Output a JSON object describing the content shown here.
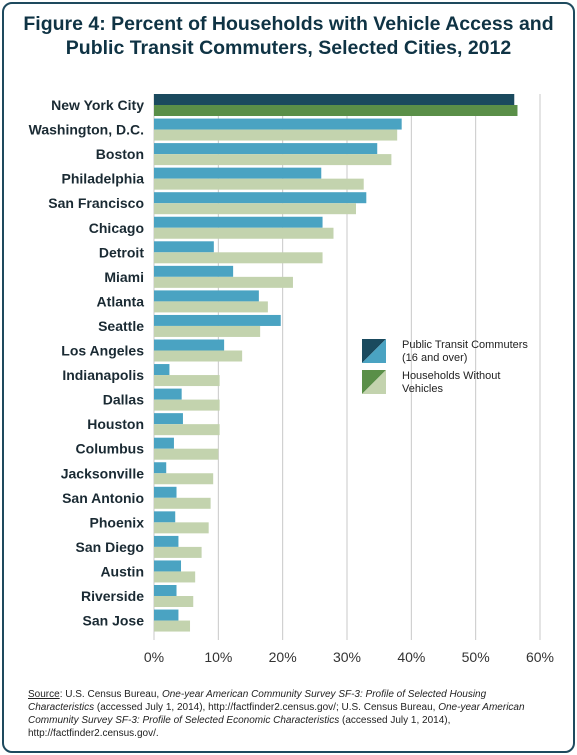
{
  "title_line1": "Figure 4: Percent of Households with Vehicle Access and",
  "title_line2": "Public Transit Commuters, Selected Cities, 2012",
  "colors": {
    "transit": "#4aa3c2",
    "households": "#c3d3ae",
    "transit_highlight": "#1a4a5e",
    "households_highlight": "#5a8f48",
    "grid": "#c8c8c8",
    "label": "#1a2a33"
  },
  "chart_data": {
    "type": "bar",
    "orientation": "horizontal",
    "categories": [
      "New York City",
      "Washington, D.C.",
      "Boston",
      "Philadelphia",
      "San Francisco",
      "Chicago",
      "Detroit",
      "Miami",
      "Atlanta",
      "Seattle",
      "Los Angeles",
      "Indianapolis",
      "Dallas",
      "Houston",
      "Columbus",
      "Jacksonville",
      "San Antonio",
      "Phoenix",
      "San Diego",
      "Austin",
      "Riverside",
      "San Jose"
    ],
    "series": [
      {
        "name": "Public Transit Commuters (16 and over)",
        "values": [
          56.0,
          38.5,
          34.7,
          26.0,
          33.0,
          26.2,
          9.3,
          12.3,
          16.3,
          19.7,
          10.9,
          2.4,
          4.3,
          4.5,
          3.1,
          1.9,
          3.5,
          3.3,
          3.8,
          4.2,
          3.5,
          3.8
        ]
      },
      {
        "name": "Households Without Vehicles",
        "values": [
          56.5,
          37.8,
          36.9,
          32.6,
          31.4,
          27.9,
          26.2,
          21.6,
          17.7,
          16.5,
          13.7,
          10.2,
          10.2,
          10.2,
          10.0,
          9.2,
          8.8,
          8.5,
          7.4,
          6.4,
          6.1,
          5.6
        ]
      }
    ],
    "xlim": [
      0,
      60
    ],
    "x_ticks": [
      "0%",
      "10%",
      "20%",
      "30%",
      "40%",
      "50%",
      "60%"
    ],
    "grid": true,
    "legend": {
      "placement": "right",
      "items": [
        {
          "line1": "Public Transit Commuters",
          "line2": "(16 and over)"
        },
        {
          "line1": "Households Without",
          "line2": "Vehicles"
        }
      ]
    }
  },
  "source": {
    "label": "Source",
    "t1": ": U.S. Census Bureau, ",
    "i1": "One-year American Community Survey SF-3: Profile of Selected Housing Characteristics",
    "t2": " (accessed July 1, 2014),  http://factfinder2.census.gov/; U.S. Census Bureau, ",
    "i2": "One-year American Community Survey SF-3: Profile of Selected Economic Characteristics",
    "t3": " (accessed July 1, 2014), http://factfinder2.census.gov/."
  }
}
